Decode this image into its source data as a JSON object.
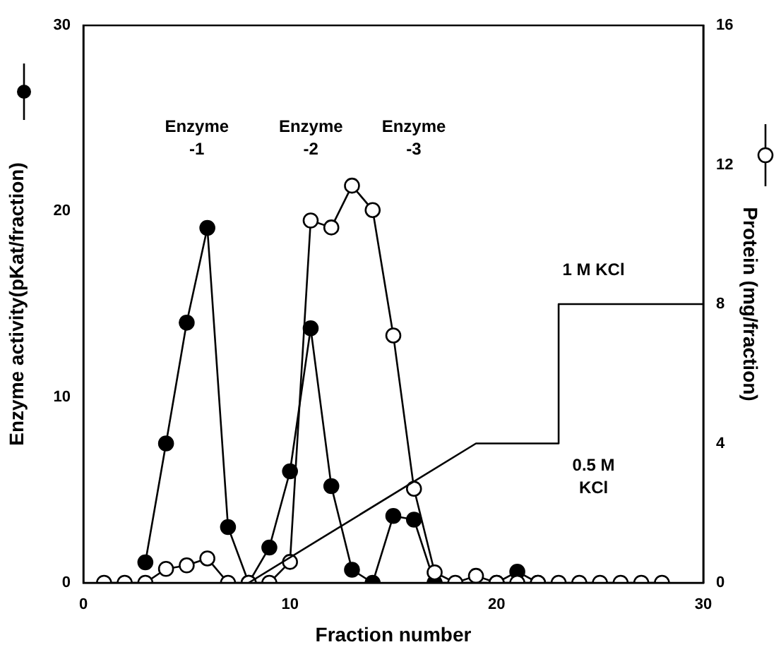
{
  "chart_data": {
    "type": "line",
    "xlabel": "Fraction number",
    "ylabel": "Enzyme activity(pKat/fraction)",
    "y2label": "Protein (mg/fraction)",
    "xlim": [
      0,
      30
    ],
    "xticks": [
      0,
      10,
      20,
      30
    ],
    "ylim": [
      0,
      30
    ],
    "yticks": [
      0,
      10,
      20,
      30
    ],
    "y2lim": [
      0,
      16
    ],
    "y2ticks": [
      0,
      4,
      8,
      12,
      16
    ],
    "grid": false,
    "legend": false,
    "marker": "circle",
    "line_style": "solid",
    "series": [
      {
        "color": "#000000",
        "axis": "y",
        "x": [
          3,
          4,
          5,
          6,
          7,
          8,
          9,
          10,
          11,
          12,
          13,
          14,
          15,
          16,
          17,
          20,
          21,
          22
        ],
        "values": [
          1.1,
          7.5,
          14,
          19.1,
          3,
          0,
          1.9,
          6,
          13.7,
          5.2,
          0.7,
          0,
          3.6,
          3.4,
          0,
          0,
          0.6,
          0
        ]
      },
      {
        "color": "#000000",
        "axis": "y2",
        "x": [
          1,
          2,
          3,
          4,
          5,
          6,
          7,
          8,
          9,
          10,
          11,
          12,
          13,
          14,
          15,
          16,
          17,
          18,
          19,
          20,
          21,
          22,
          23,
          24,
          25,
          26,
          27,
          28
        ],
        "values": [
          0,
          0,
          0,
          0.4,
          0.5,
          0.7,
          0,
          0,
          0,
          0.6,
          10.4,
          10.2,
          11.4,
          10.7,
          7.1,
          2.7,
          0.3,
          0,
          0.2,
          0,
          0,
          0,
          0,
          0,
          0,
          0,
          0,
          0
        ]
      },
      {
        "color": "#000000",
        "axis": "y2",
        "marker": "none",
        "x": [
          8,
          19,
          23,
          23,
          30
        ],
        "values": [
          0,
          4,
          4,
          8,
          8
        ]
      }
    ],
    "annotations": [
      "Enzyme\n-1",
      "Enzyme\n-2",
      "Enzyme\n-3",
      "1 M KCl",
      "0.5 M\nKCl"
    ]
  }
}
